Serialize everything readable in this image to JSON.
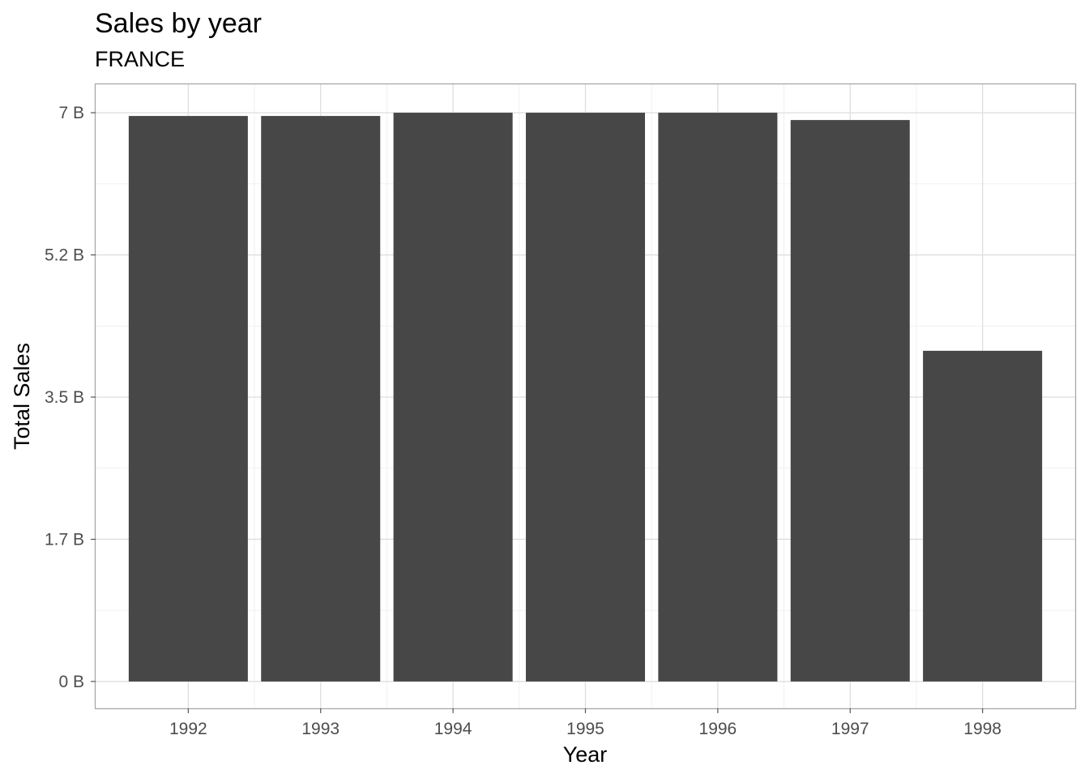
{
  "chart_data": {
    "type": "bar",
    "title": "Sales by year",
    "subtitle": "FRANCE",
    "xlabel": "Year",
    "ylabel": "Total Sales",
    "categories": [
      "1992",
      "1993",
      "1994",
      "1995",
      "1996",
      "1997",
      "1998"
    ],
    "values": [
      6.96,
      6.96,
      7.0,
      7.0,
      7.0,
      6.91,
      4.07
    ],
    "value_unit": "B",
    "ylim": [
      -0.33,
      7.35
    ],
    "y_ticks": [
      0,
      1.75,
      3.5,
      5.25,
      7.0
    ],
    "y_tick_labels": [
      "0 B",
      "1.7 B",
      "3.5 B",
      "5.2 B",
      "7 B"
    ],
    "grid": true,
    "legend": "none",
    "bar_color": "#474747"
  }
}
